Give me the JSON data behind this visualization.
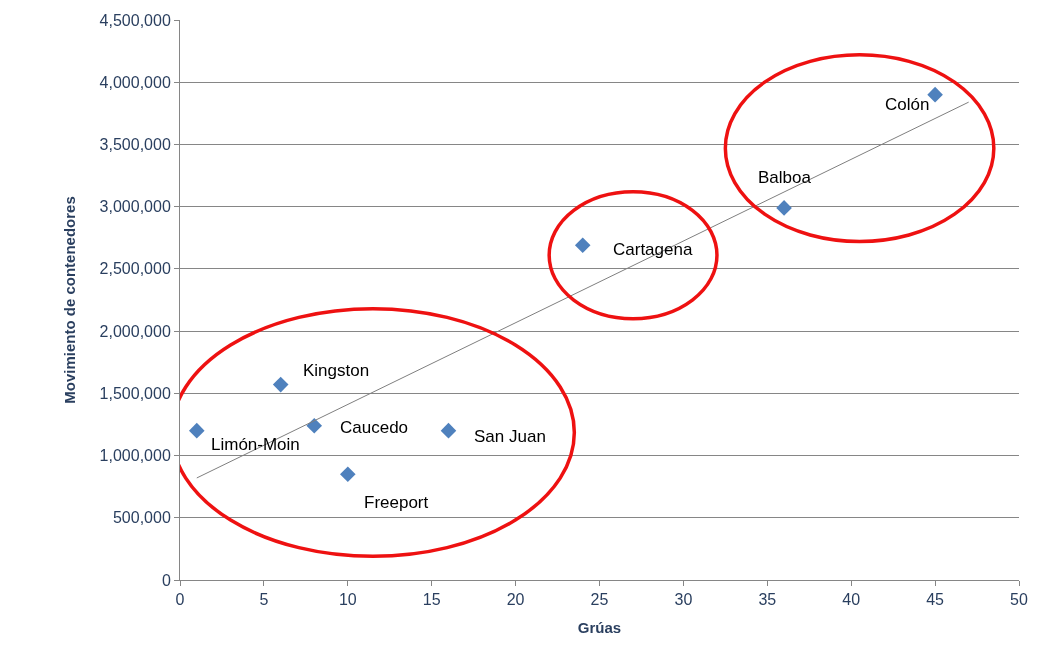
{
  "chart_data": {
    "type": "scatter",
    "xlabel": "Grúas",
    "ylabel": "Movimiento de contenedores",
    "xlim": [
      0,
      50
    ],
    "xticks": [
      0,
      5,
      10,
      15,
      20,
      25,
      30,
      35,
      40,
      45,
      50
    ],
    "ylim": [
      0,
      4500000
    ],
    "yticks": [
      {
        "value": 0,
        "label": "0"
      },
      {
        "value": 500000,
        "label": "500,000"
      },
      {
        "value": 1000000,
        "label": "1,000,000"
      },
      {
        "value": 1500000,
        "label": "1,500,000"
      },
      {
        "value": 2000000,
        "label": "2,000,000"
      },
      {
        "value": 2500000,
        "label": "2,500,000"
      },
      {
        "value": 3000000,
        "label": "3,000,000"
      },
      {
        "value": 3500000,
        "label": "3,500,000"
      },
      {
        "value": 4000000,
        "label": "4,000,000"
      },
      {
        "value": 4500000,
        "label": "4,500,000"
      }
    ],
    "grid": "y",
    "series": [
      {
        "marker": "diamond",
        "color": "#4f81bd",
        "x": [
          1,
          6,
          8,
          10,
          16,
          24,
          36,
          45
        ],
        "values": [
          1200000,
          1570000,
          1240000,
          850000,
          1200000,
          2690000,
          2990000,
          3900000
        ]
      },
      {
        "type": "line",
        "marker": "none",
        "color": "#7f7f7f",
        "x": [
          1,
          47
        ],
        "values": [
          820000,
          3840000
        ]
      }
    ],
    "annotations": [
      {
        "text": "Limón-Moin",
        "x": 1,
        "y": 1200000
      },
      {
        "text": "Kingston",
        "x": 6,
        "y": 1570000
      },
      {
        "text": "Caucedo",
        "x": 8,
        "y": 1240000
      },
      {
        "text": "Freeport",
        "x": 10,
        "y": 850000
      },
      {
        "text": "San Juan",
        "x": 16,
        "y": 1200000
      },
      {
        "text": "Cartagena",
        "x": 24,
        "y": 2690000
      },
      {
        "text": "Balboa",
        "x": 36,
        "y": 2990000
      },
      {
        "text": "Colón",
        "x": 45,
        "y": 3900000
      }
    ]
  }
}
